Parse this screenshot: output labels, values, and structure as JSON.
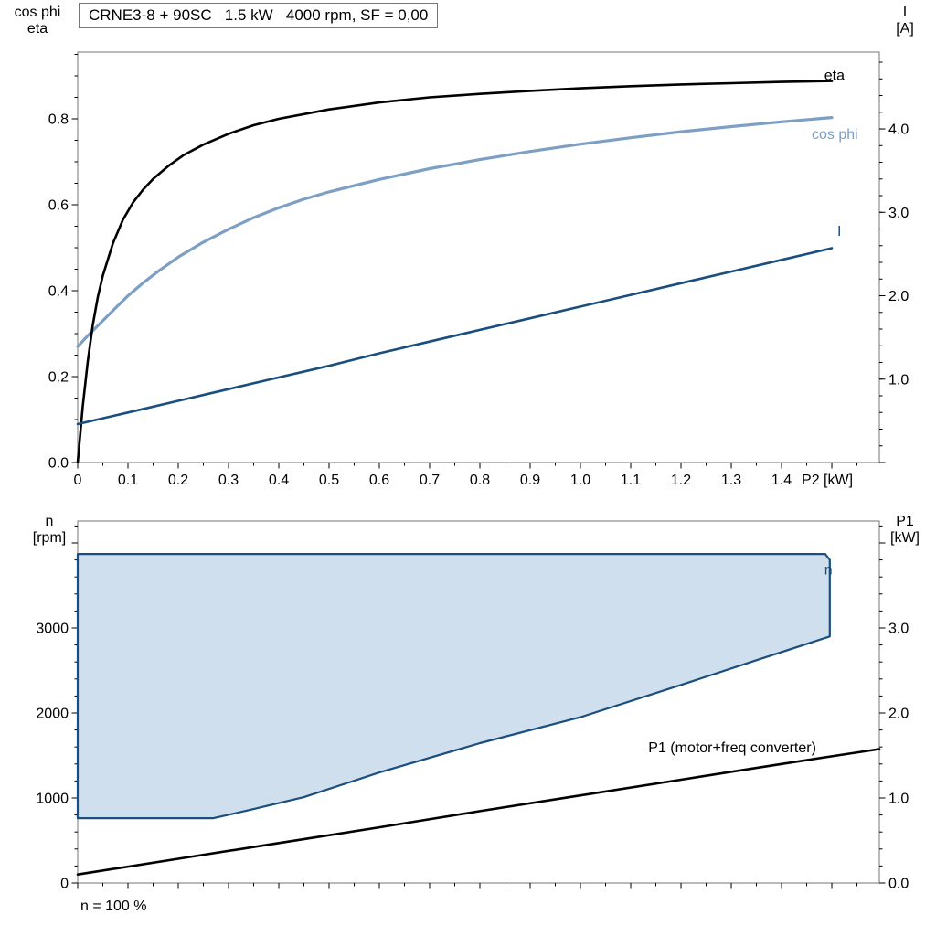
{
  "colors": {
    "black": "#000000",
    "cos_phi": "#7d9fc4",
    "dark_blue": "#1a4e7e",
    "envelope_fill": "#cfdfed",
    "frame": "#8c8c8c",
    "tick": "#000000",
    "background": "#ffffff"
  },
  "chart_data": [
    {
      "id": "top",
      "type": "line",
      "title": "CRNE3-8 + 90SC   1.5 kW   4000 rpm, SF = 0,00",
      "x_axis": {
        "min": 0,
        "max": 1.5945,
        "major_step": 0.1,
        "minor_step": 0.05,
        "unit_label": "P2 [kW]",
        "labels": [
          {
            "v": 0,
            "t": "0"
          },
          {
            "v": 0.1,
            "t": "0.1"
          },
          {
            "v": 0.2,
            "t": "0.2"
          },
          {
            "v": 0.3,
            "t": "0.3"
          },
          {
            "v": 0.4,
            "t": "0.4"
          },
          {
            "v": 0.5,
            "t": "0.5"
          },
          {
            "v": 0.6,
            "t": "0.6"
          },
          {
            "v": 0.7,
            "t": "0.7"
          },
          {
            "v": 0.8,
            "t": "0.8"
          },
          {
            "v": 0.9,
            "t": "0.9"
          },
          {
            "v": 1.0,
            "t": "1.0"
          },
          {
            "v": 1.1,
            "t": "1.1"
          },
          {
            "v": 1.2,
            "t": "1.2"
          },
          {
            "v": 1.3,
            "t": "1.3"
          },
          {
            "v": 1.4,
            "t": "1.4"
          }
        ]
      },
      "y_left": {
        "title_lines": [
          "cos phi",
          "eta"
        ],
        "min": 0,
        "max": 0.9553,
        "major_step": 0.2,
        "minor_step": 0.05,
        "labels": [
          {
            "v": 0,
            "t": "0.0"
          },
          {
            "v": 0.2,
            "t": "0.2"
          },
          {
            "v": 0.4,
            "t": "0.4"
          },
          {
            "v": 0.6,
            "t": "0.6"
          },
          {
            "v": 0.8,
            "t": "0.8"
          }
        ]
      },
      "y_right": {
        "title_lines": [
          "I",
          "[A]"
        ],
        "min": 0,
        "max": 4.921,
        "major_step": 1,
        "minor_step": 0.2,
        "labels": [
          {
            "v": 1,
            "t": "1.0"
          },
          {
            "v": 2,
            "t": "2.0"
          },
          {
            "v": 3,
            "t": "3.0"
          },
          {
            "v": 4,
            "t": "4.0"
          }
        ]
      },
      "series": [
        {
          "name": "cos_phi",
          "axis": "left",
          "color_key": "cos_phi",
          "width": 3.2,
          "points": [
            [
              0,
              0.27
            ],
            [
              0.02,
              0.295
            ],
            [
              0.05,
              0.33
            ],
            [
              0.08,
              0.365
            ],
            [
              0.1,
              0.388
            ],
            [
              0.13,
              0.418
            ],
            [
              0.16,
              0.445
            ],
            [
              0.2,
              0.478
            ],
            [
              0.25,
              0.513
            ],
            [
              0.3,
              0.543
            ],
            [
              0.35,
              0.57
            ],
            [
              0.4,
              0.593
            ],
            [
              0.45,
              0.613
            ],
            [
              0.5,
              0.63
            ],
            [
              0.6,
              0.659
            ],
            [
              0.7,
              0.684
            ],
            [
              0.8,
              0.705
            ],
            [
              0.9,
              0.724
            ],
            [
              1.0,
              0.741
            ],
            [
              1.1,
              0.756
            ],
            [
              1.2,
              0.77
            ],
            [
              1.3,
              0.782
            ],
            [
              1.4,
              0.793
            ],
            [
              1.5,
              0.803
            ]
          ]
        },
        {
          "name": "eta",
          "axis": "left",
          "color_key": "black",
          "width": 2.6,
          "points": [
            [
              0,
              0
            ],
            [
              0.01,
              0.13
            ],
            [
              0.02,
              0.235
            ],
            [
              0.03,
              0.32
            ],
            [
              0.04,
              0.385
            ],
            [
              0.05,
              0.435
            ],
            [
              0.07,
              0.51
            ],
            [
              0.09,
              0.565
            ],
            [
              0.11,
              0.605
            ],
            [
              0.13,
              0.635
            ],
            [
              0.15,
              0.66
            ],
            [
              0.18,
              0.69
            ],
            [
              0.21,
              0.715
            ],
            [
              0.25,
              0.74
            ],
            [
              0.3,
              0.765
            ],
            [
              0.35,
              0.785
            ],
            [
              0.4,
              0.8
            ],
            [
              0.5,
              0.822
            ],
            [
              0.6,
              0.838
            ],
            [
              0.7,
              0.85
            ],
            [
              0.8,
              0.858
            ],
            [
              0.9,
              0.865
            ],
            [
              1.0,
              0.871
            ],
            [
              1.1,
              0.876
            ],
            [
              1.2,
              0.88
            ],
            [
              1.3,
              0.883
            ],
            [
              1.4,
              0.886
            ],
            [
              1.5,
              0.888
            ]
          ]
        },
        {
          "name": "I",
          "axis": "right",
          "color_key": "dark_blue",
          "width": 2.6,
          "points": [
            [
              0,
              0.46
            ],
            [
              0.1,
              0.6
            ],
            [
              0.2,
              0.74
            ],
            [
              0.3,
              0.88
            ],
            [
              0.4,
              1.02
            ],
            [
              0.5,
              1.16
            ],
            [
              0.6,
              1.31
            ],
            [
              0.7,
              1.45
            ],
            [
              0.8,
              1.59
            ],
            [
              0.9,
              1.73
            ],
            [
              1.0,
              1.87
            ],
            [
              1.1,
              2.01
            ],
            [
              1.2,
              2.15
            ],
            [
              1.3,
              2.29
            ],
            [
              1.4,
              2.43
            ],
            [
              1.5,
              2.57
            ]
          ]
        }
      ],
      "labels": [
        {
          "name": "eta",
          "text": "eta",
          "x": 1.485,
          "y": 0.89,
          "axis": "left",
          "anchor": "start",
          "color_key": "black"
        },
        {
          "name": "cos-phi",
          "text": "cos phi",
          "x": 1.46,
          "y": 0.753,
          "axis": "left",
          "anchor": "start",
          "color_key": "cos_phi"
        },
        {
          "name": "current",
          "text": "I",
          "x": 1.515,
          "y": 0.5275,
          "axis": "left",
          "anchor": "middle",
          "color_key": "dark_blue"
        }
      ]
    },
    {
      "id": "bottom",
      "type": "line",
      "x_axis": {
        "min": 0,
        "max": 1.5945,
        "major_step": 0.1,
        "minor_step": 0.05,
        "labels": []
      },
      "y_left": {
        "title_lines": [
          "n",
          "[rpm]"
        ],
        "min": 0,
        "max": 4258,
        "major_step": 1000,
        "minor_step": 200,
        "labels": [
          {
            "v": 0,
            "t": "0"
          },
          {
            "v": 1000,
            "t": "1000"
          },
          {
            "v": 2000,
            "t": "2000"
          },
          {
            "v": 3000,
            "t": "3000"
          }
        ]
      },
      "y_right": {
        "title_lines": [
          "P1",
          "[kW]"
        ],
        "min": 0,
        "max": 4.258,
        "major_step": 1,
        "minor_step": 0.2,
        "labels": [
          {
            "v": 0,
            "t": "0.0"
          },
          {
            "v": 1,
            "t": "1.0"
          },
          {
            "v": 2,
            "t": "2.0"
          },
          {
            "v": 3,
            "t": "3.0"
          }
        ]
      },
      "envelope": {
        "name": "speed-envelope",
        "fill_key": "envelope_fill",
        "stroke_key": "dark_blue",
        "width": 2.2,
        "points_rpm": [
          [
            0,
            3870
          ],
          [
            1.487,
            3870
          ],
          [
            1.496,
            3800
          ],
          [
            1.496,
            2900
          ],
          [
            1.35,
            2620
          ],
          [
            1.2,
            2330
          ],
          [
            1.0,
            1950
          ],
          [
            0.8,
            1645
          ],
          [
            0.6,
            1300
          ],
          [
            0.45,
            1010
          ],
          [
            0.35,
            870
          ],
          [
            0.27,
            762
          ],
          [
            0,
            762
          ]
        ]
      },
      "series": [
        {
          "name": "P1",
          "axis": "right",
          "color_key": "black",
          "width": 2.6,
          "points": [
            [
              0,
              0.1
            ],
            [
              0.2,
              0.285
            ],
            [
              0.4,
              0.47
            ],
            [
              0.6,
              0.655
            ],
            [
              0.8,
              0.845
            ],
            [
              1.0,
              1.03
            ],
            [
              1.2,
              1.215
            ],
            [
              1.4,
              1.4
            ],
            [
              1.5,
              1.49
            ],
            [
              1.5945,
              1.575
            ]
          ]
        }
      ],
      "labels": [
        {
          "name": "n",
          "text": "n",
          "x": 1.493,
          "y": 3630,
          "axis": "left",
          "anchor": "middle",
          "color_key": "dark_blue"
        },
        {
          "name": "P1",
          "text": "P1 (motor+freq converter)",
          "x": 1.135,
          "y": 1.537,
          "axis": "right",
          "anchor": "start",
          "color_key": "black"
        }
      ],
      "footnote": "n = 100 %"
    }
  ]
}
